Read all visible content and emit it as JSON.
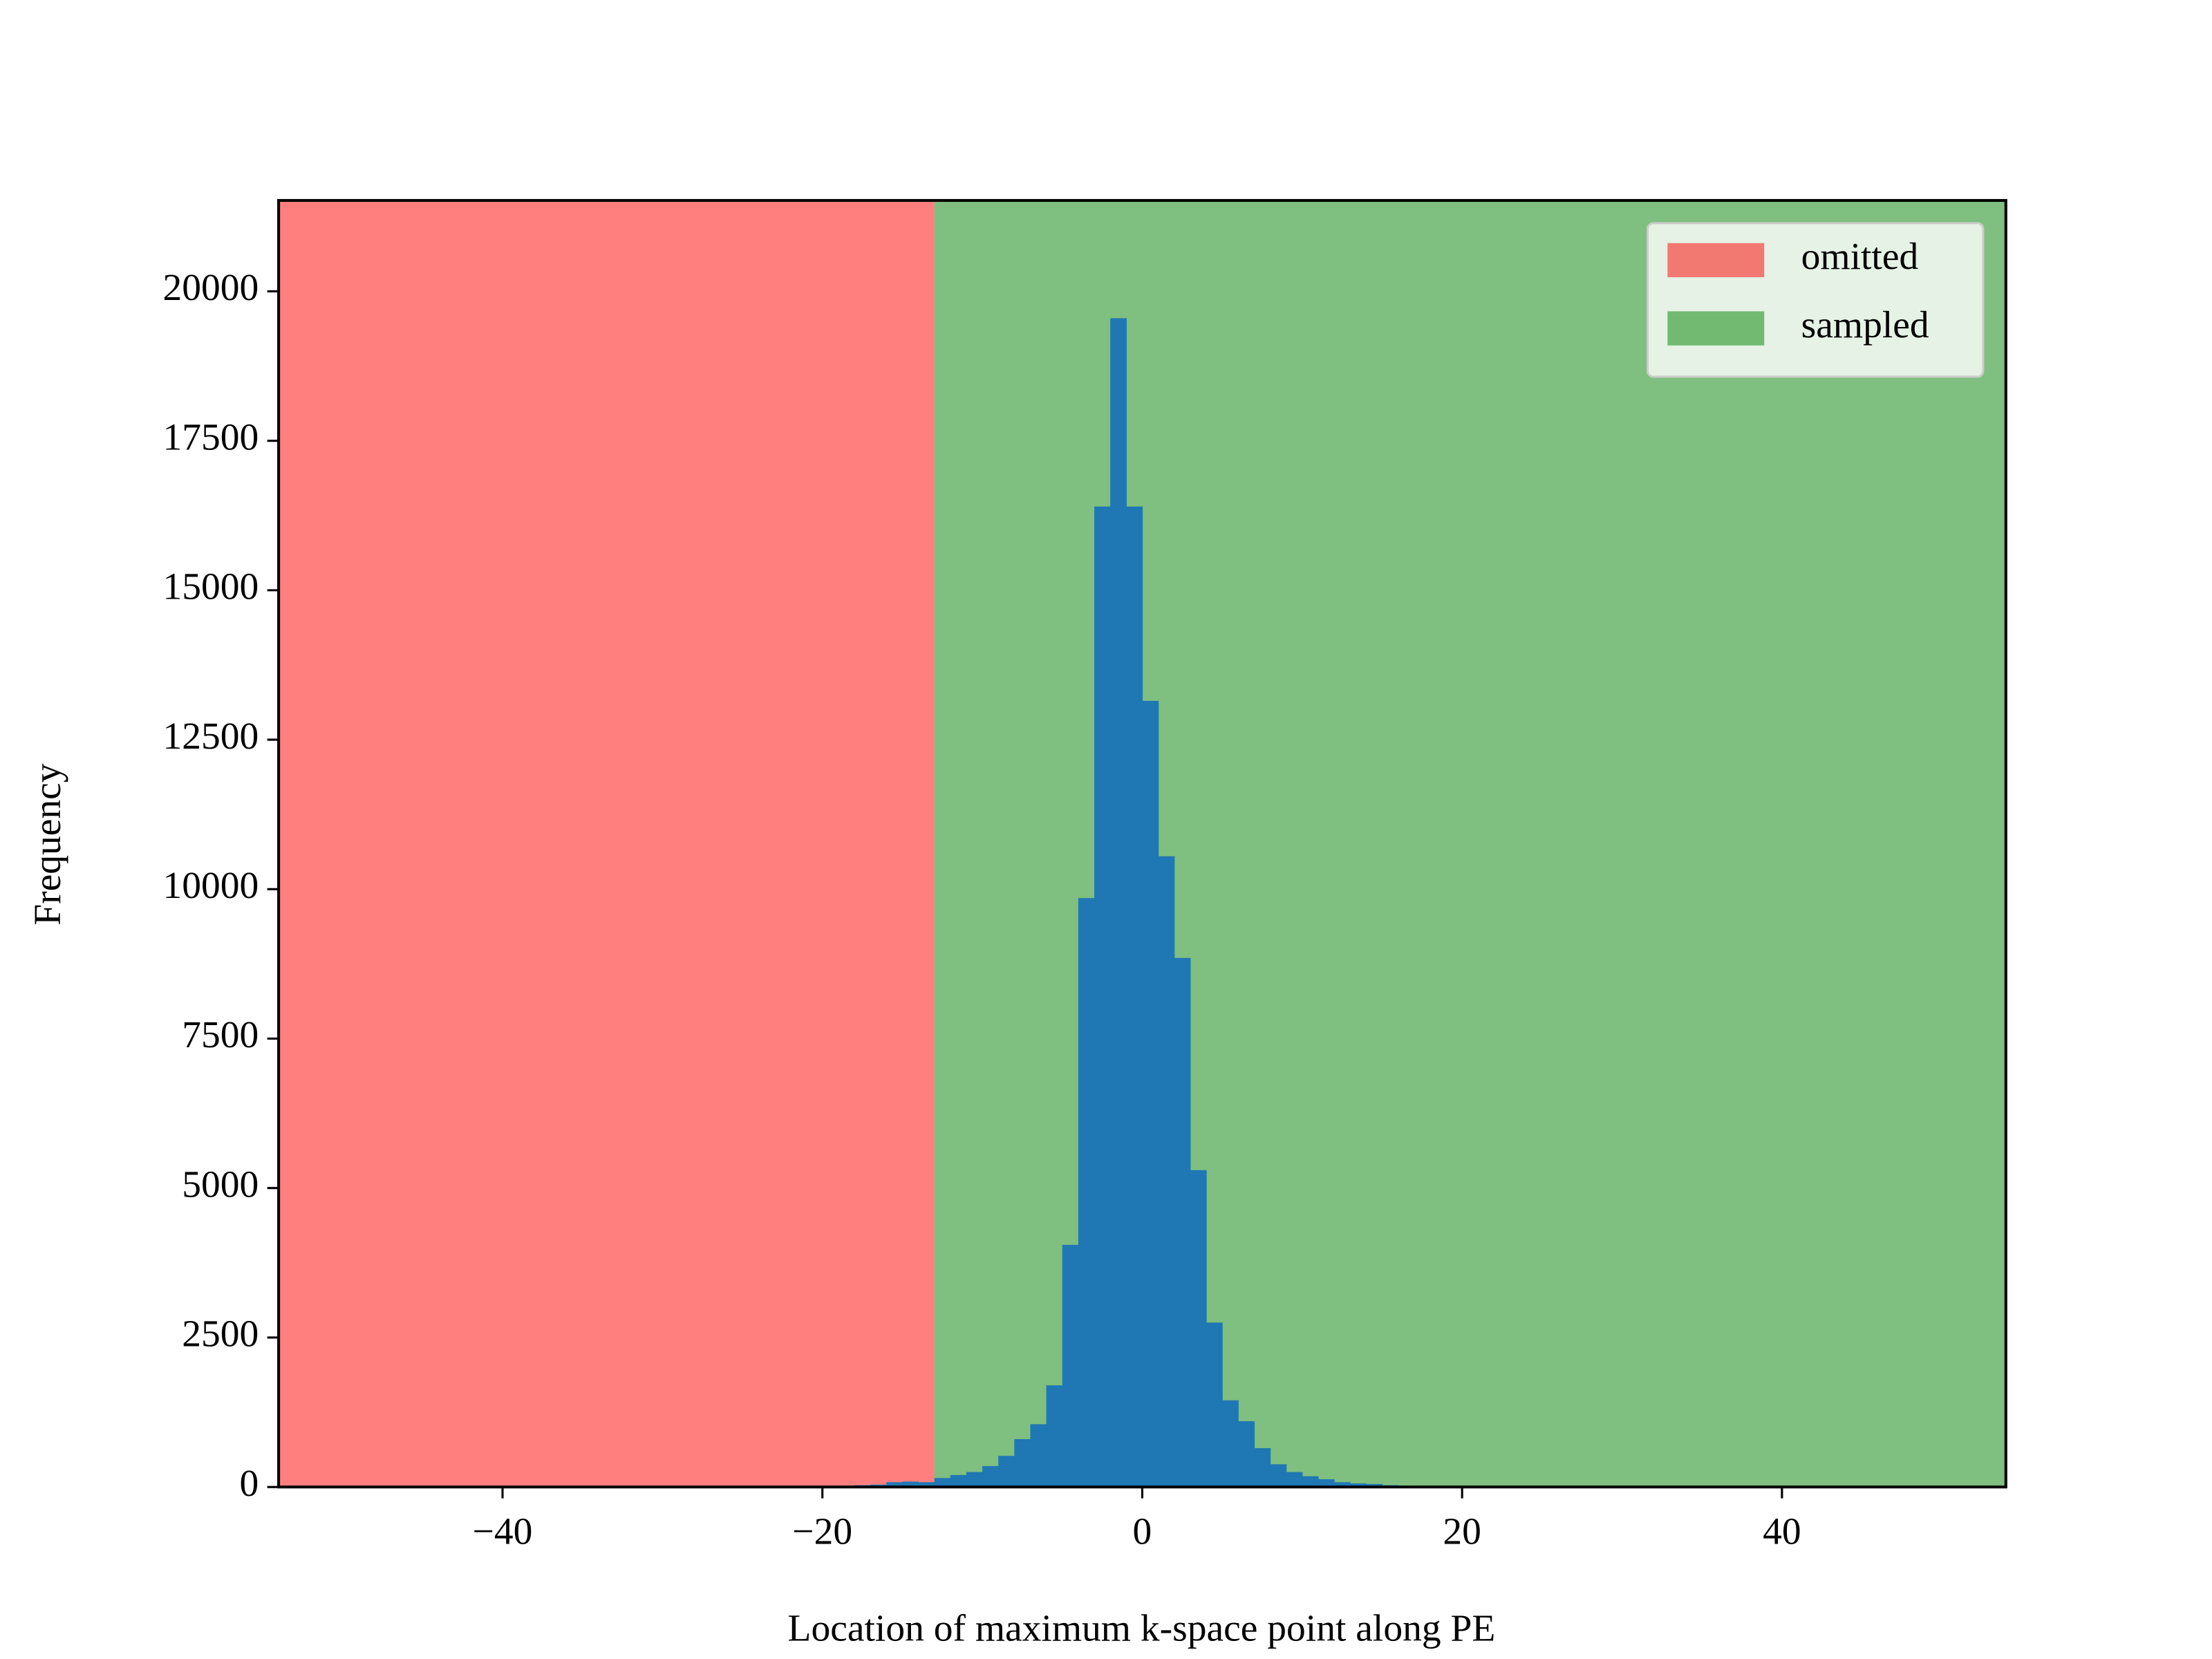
{
  "chart_data": {
    "type": "histogram",
    "xlabel": "Location of maximum k-space point along PE",
    "ylabel": "Frequency",
    "bins": [
      -20,
      -19,
      -18,
      -17,
      -16,
      -15,
      -14,
      -13,
      -12,
      -11,
      -10,
      -9,
      -8,
      -7,
      -6,
      -5,
      -4,
      -3,
      -2,
      -1,
      0,
      1,
      2,
      3,
      4,
      5,
      6,
      7,
      8,
      9,
      10,
      11,
      12,
      13,
      14,
      15,
      16,
      17
    ],
    "counts": [
      10,
      20,
      30,
      40,
      80,
      90,
      80,
      150,
      200,
      250,
      350,
      520,
      800,
      1050,
      1700,
      4050,
      9850,
      16400,
      19550,
      16400,
      13150,
      10550,
      8850,
      5300,
      2750,
      1450,
      1100,
      650,
      380,
      250,
      180,
      130,
      80,
      60,
      50,
      30,
      15
    ],
    "color": "#1f77b4",
    "spans": [
      {
        "name": "omitted",
        "range": [
          -54,
          -13
        ],
        "color": "#ff0000"
      },
      {
        "name": "sampled",
        "range": [
          -13,
          54
        ],
        "color": "#008000"
      }
    ],
    "span_alpha": 0.5,
    "legend": "upper right",
    "xlim": [
      -54,
      54
    ],
    "ylim": [
      0,
      21520
    ],
    "xticks": [
      {
        "value": -40,
        "label": "−40"
      },
      {
        "value": -20,
        "label": "−20"
      },
      0,
      20,
      40
    ],
    "yticks": [
      0,
      2500,
      5000,
      7500,
      10000,
      12500,
      15000,
      17500,
      20000
    ]
  }
}
